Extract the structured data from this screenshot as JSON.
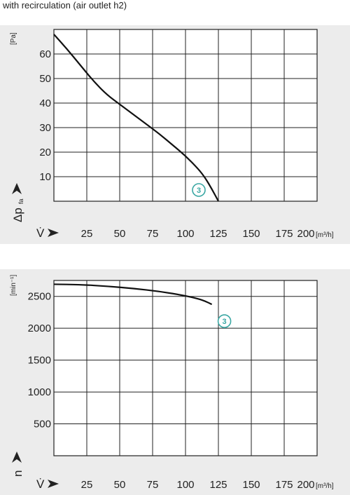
{
  "caption": "with recirculation (air outlet h2)",
  "chart_data": [
    {
      "type": "line",
      "ylabel_symbol": "Δp",
      "ylabel_sub": "fa",
      "yunit": "[Pa]",
      "xlabel_symbol": "V̇",
      "xunit": "[m³/h]",
      "xlim": [
        0,
        200
      ],
      "ylim": [
        0,
        70
      ],
      "xticks": [
        25,
        50,
        75,
        100,
        125,
        150,
        175,
        200
      ],
      "yticks": [
        10,
        20,
        30,
        40,
        50,
        60
      ],
      "grid": true,
      "series": [
        {
          "marker_label": "3",
          "x": [
            0,
            10,
            20,
            30,
            40,
            50,
            60,
            70,
            80,
            90,
            100,
            110,
            115,
            120,
            125
          ],
          "y": [
            68,
            62,
            55.5,
            49,
            43.5,
            39.5,
            35.5,
            31.5,
            27.5,
            23,
            18.5,
            13,
            9.5,
            5,
            0
          ]
        }
      ]
    },
    {
      "type": "line",
      "ylabel_symbol": "n",
      "yunit": "[min⁻¹]",
      "xlabel_symbol": "V̇",
      "xunit": "[m³/h]",
      "xlim": [
        0,
        200
      ],
      "ylim": [
        0,
        2750
      ],
      "xticks": [
        25,
        50,
        75,
        100,
        125,
        150,
        175,
        200
      ],
      "yticks": [
        500,
        1000,
        1500,
        2000,
        2500
      ],
      "grid": true,
      "series": [
        {
          "marker_label": "3",
          "x": [
            0,
            20,
            40,
            60,
            80,
            100,
            110,
            115,
            120
          ],
          "y": [
            2690,
            2685,
            2660,
            2625,
            2580,
            2510,
            2460,
            2425,
            2375
          ]
        }
      ]
    }
  ]
}
